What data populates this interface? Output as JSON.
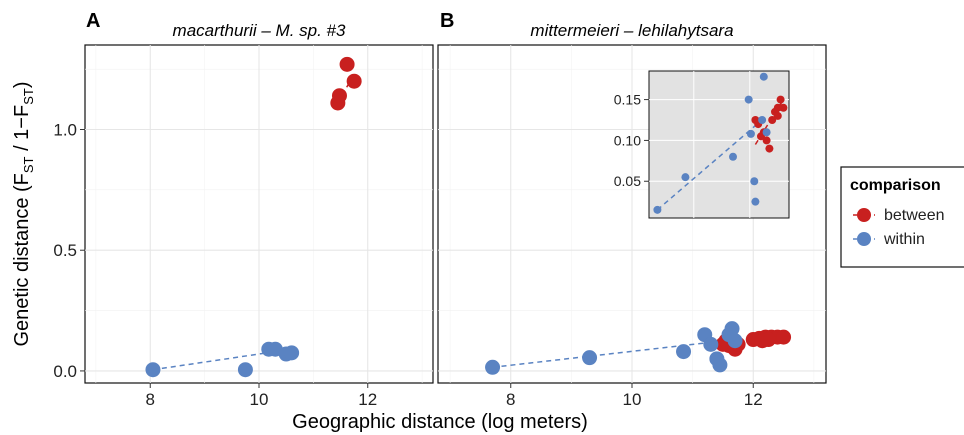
{
  "figure": {
    "xlabel": "Geographic distance (log meters)",
    "ylabel_main": "Genetic distance (F",
    "ylabel_sub1": "ST",
    "ylabel_mid": " / 1−F",
    "ylabel_sub2": "ST",
    "ylabel_end": ")",
    "legend_title": "comparison"
  },
  "colors": {
    "between": "#C8201F",
    "within": "#5A83C2"
  },
  "chart_data": [
    {
      "panel_label": "A",
      "title": "macarthurii – M. sp. #3",
      "type": "scatter",
      "xlim": [
        6.8,
        13.2
      ],
      "ylim": [
        -0.05,
        1.35
      ],
      "xticks": [
        8,
        10,
        12
      ],
      "yticks": [
        0.0,
        0.5,
        1.0
      ],
      "ytick_labels": [
        "0.0",
        "0.5",
        "1.0"
      ],
      "series": [
        {
          "name": "between",
          "points": [
            [
              11.45,
              1.11
            ],
            [
              11.48,
              1.14
            ],
            [
              11.62,
              1.27
            ],
            [
              11.75,
              1.2
            ]
          ]
        },
        {
          "name": "within",
          "points": [
            [
              8.05,
              0.005
            ],
            [
              9.75,
              0.005
            ],
            [
              10.18,
              0.09
            ],
            [
              10.3,
              0.09
            ],
            [
              10.5,
              0.07
            ],
            [
              10.6,
              0.075
            ]
          ]
        }
      ],
      "trendlines": [
        {
          "series": "between",
          "x": [
            11.45,
            11.75
          ],
          "y": [
            1.11,
            1.23
          ]
        },
        {
          "series": "within",
          "x": [
            8.05,
            10.6
          ],
          "y": [
            0.005,
            0.09
          ]
        }
      ]
    },
    {
      "panel_label": "B",
      "title": "mittermeieri – lehilahytsara",
      "type": "scatter",
      "xlim": [
        6.8,
        13.2
      ],
      "ylim": [
        -0.05,
        1.35
      ],
      "xticks": [
        8,
        10,
        12
      ],
      "yticks": [
        0.0,
        0.5,
        1.0
      ],
      "series": [
        {
          "name": "between",
          "points": [
            [
              11.5,
              0.11
            ],
            [
              11.55,
              0.125
            ],
            [
              11.6,
              0.105
            ],
            [
              11.7,
              0.09
            ],
            [
              11.75,
              0.11
            ],
            [
              12.0,
              0.13
            ],
            [
              12.1,
              0.135
            ],
            [
              12.2,
              0.14
            ],
            [
              12.3,
              0.14
            ],
            [
              12.4,
              0.14
            ],
            [
              12.5,
              0.14
            ],
            [
              12.15,
              0.125
            ],
            [
              12.25,
              0.13
            ]
          ]
        },
        {
          "name": "within",
          "points": [
            [
              7.7,
              0.015
            ],
            [
              9.3,
              0.055
            ],
            [
              10.85,
              0.08
            ],
            [
              11.2,
              0.15
            ],
            [
              11.3,
              0.11
            ],
            [
              11.4,
              0.05
            ],
            [
              11.45,
              0.025
            ],
            [
              11.6,
              0.15
            ],
            [
              11.65,
              0.175
            ],
            [
              11.7,
              0.125
            ]
          ]
        }
      ],
      "trendlines": [
        {
          "series": "between",
          "x": [
            11.5,
            12.5
          ],
          "y": [
            0.095,
            0.145
          ]
        },
        {
          "series": "within",
          "x": [
            7.7,
            11.7
          ],
          "y": [
            0.015,
            0.13
          ]
        }
      ],
      "inset": {
        "xlim": [
          10.2,
          12.7
        ],
        "ylim": [
          0.005,
          0.185
        ],
        "yticks": [
          0.05,
          0.1,
          0.15
        ],
        "ytick_labels": [
          "0.05",
          "0.10",
          "0.15"
        ],
        "series": [
          {
            "name": "between",
            "points": [
              [
                12.1,
                0.125
              ],
              [
                12.15,
                0.12
              ],
              [
                12.2,
                0.105
              ],
              [
                12.25,
                0.11
              ],
              [
                12.3,
                0.1
              ],
              [
                12.35,
                0.09
              ],
              [
                12.4,
                0.125
              ],
              [
                12.45,
                0.135
              ],
              [
                12.5,
                0.13
              ],
              [
                12.55,
                0.15
              ],
              [
                12.6,
                0.14
              ],
              [
                12.5,
                0.14
              ]
            ]
          },
          {
            "name": "within",
            "points": [
              [
                10.35,
                0.015
              ],
              [
                10.85,
                0.055
              ],
              [
                11.7,
                0.08
              ],
              [
                11.98,
                0.15
              ],
              [
                12.02,
                0.108
              ],
              [
                12.08,
                0.05
              ],
              [
                12.1,
                0.025
              ],
              [
                12.22,
                0.125
              ],
              [
                12.25,
                0.178
              ],
              [
                12.3,
                0.11
              ]
            ]
          }
        ],
        "trendlines": [
          {
            "series": "between",
            "x": [
              12.1,
              12.6
            ],
            "y": [
              0.095,
              0.15
            ]
          },
          {
            "series": "within",
            "x": [
              10.35,
              12.3
            ],
            "y": [
              0.015,
              0.13
            ]
          }
        ]
      }
    }
  ],
  "legend": {
    "title": "comparison",
    "entries": [
      {
        "label": "between",
        "series": "between"
      },
      {
        "label": "within",
        "series": "within"
      }
    ]
  }
}
